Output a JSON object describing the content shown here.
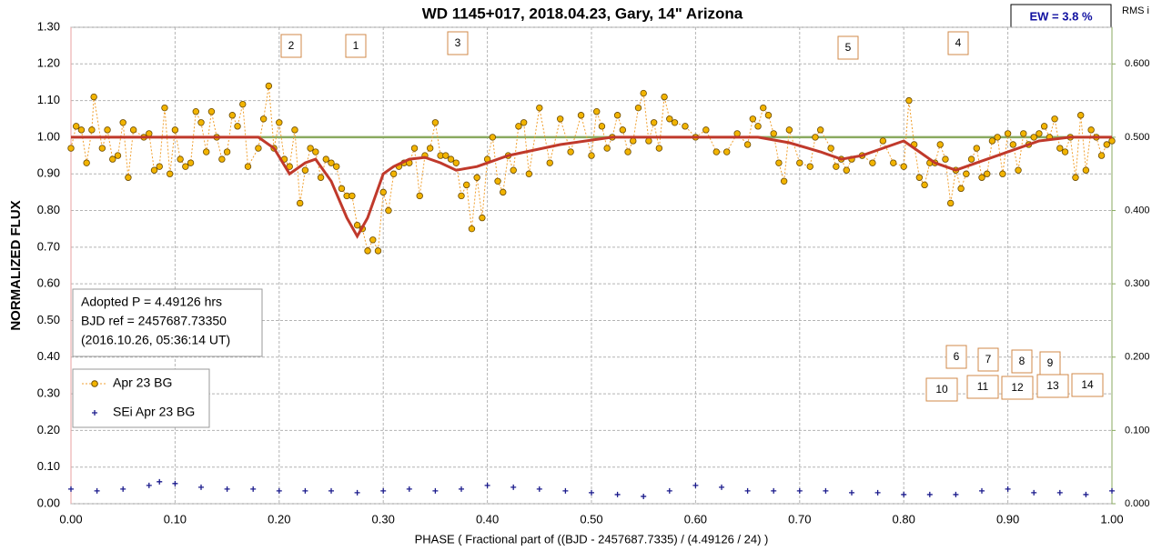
{
  "chart_data": {
    "type": "scatter",
    "title": "WD 1145+017, 2018.04.23, Gary,  14\" Arizona",
    "x_label": "PHASE  ( Fractional part of ((BJD - 2457687.7335)  / (4.49126  / 24) )",
    "y_label": "NORMALIZED  FLUX",
    "y2_label": "RMS i",
    "ew_label": "EW =  3.8 %",
    "info": [
      "Adopted P = 4.49126 hrs",
      "BJD ref = 2457687.73350",
      "(2016.10.26, 05:36:14 UT)"
    ],
    "annotations": [
      "1",
      "2",
      "3",
      "4",
      "5",
      "6",
      "7",
      "8",
      "9",
      "10",
      "11",
      "12",
      "13",
      "14"
    ],
    "xlim": [
      0,
      1
    ],
    "ylim": [
      0,
      1.3
    ],
    "y2lim": [
      0,
      0.65
    ],
    "xticks": [
      {
        "value": 0,
        "label": "0.00"
      },
      {
        "value": 0.1,
        "label": "0.10"
      },
      {
        "value": 0.2,
        "label": "0.20"
      },
      {
        "value": 0.3,
        "label": "0.30"
      },
      {
        "value": 0.4,
        "label": "0.40"
      },
      {
        "value": 0.5,
        "label": "0.50"
      },
      {
        "value": 0.6,
        "label": "0.60"
      },
      {
        "value": 0.7,
        "label": "0.70"
      },
      {
        "value": 0.8,
        "label": "0.80"
      },
      {
        "value": 0.9,
        "label": "0.90"
      },
      {
        "value": 1,
        "label": "1.00"
      }
    ],
    "yticks": [
      {
        "value": 0,
        "label": "0.00"
      },
      {
        "value": 0.1,
        "label": "0.10"
      },
      {
        "value": 0.2,
        "label": "0.20"
      },
      {
        "value": 0.3,
        "label": "0.30"
      },
      {
        "value": 0.4,
        "label": "0.40"
      },
      {
        "value": 0.5,
        "label": "0.50"
      },
      {
        "value": 0.6,
        "label": "0.60"
      },
      {
        "value": 0.7,
        "label": "0.70"
      },
      {
        "value": 0.8,
        "label": "0.80"
      },
      {
        "value": 0.9,
        "label": "0.90"
      },
      {
        "value": 1,
        "label": "1.00"
      },
      {
        "value": 1.1,
        "label": "1.10"
      },
      {
        "value": 1.2,
        "label": "1.20"
      },
      {
        "value": 1.3,
        "label": "1.30"
      }
    ],
    "y2ticks": [
      {
        "value": 0,
        "label": "0.000"
      },
      {
        "value": 0.1,
        "label": "0.100"
      },
      {
        "value": 0.2,
        "label": "0.200"
      },
      {
        "value": 0.3,
        "label": "0.300"
      },
      {
        "value": 0.4,
        "label": "0.400"
      },
      {
        "value": 0.5,
        "label": "0.500"
      },
      {
        "value": 0.6,
        "label": "0.600"
      }
    ],
    "grid": true,
    "series": [
      {
        "name": "Apr 23 BG",
        "color": "#f2b400",
        "style": "points",
        "x": [
          0,
          0.005,
          0.01,
          0.015,
          0.02,
          0.022,
          0.03,
          0.035,
          0.04,
          0.045,
          0.05,
          0.055,
          0.06,
          0.07,
          0.075,
          0.08,
          0.085,
          0.09,
          0.095,
          0.1,
          0.105,
          0.11,
          0.115,
          0.12,
          0.125,
          0.13,
          0.135,
          0.14,
          0.145,
          0.15,
          0.155,
          0.16,
          0.165,
          0.17,
          0.18,
          0.185,
          0.19,
          0.195,
          0.2,
          0.205,
          0.21,
          0.215,
          0.22,
          0.225,
          0.23,
          0.235,
          0.24,
          0.245,
          0.25,
          0.255,
          0.26,
          0.265,
          0.27,
          0.275,
          0.28,
          0.285,
          0.29,
          0.295,
          0.3,
          0.305,
          0.31,
          0.315,
          0.32,
          0.325,
          0.33,
          0.335,
          0.34,
          0.345,
          0.35,
          0.355,
          0.36,
          0.365,
          0.37,
          0.375,
          0.38,
          0.385,
          0.39,
          0.395,
          0.4,
          0.405,
          0.41,
          0.415,
          0.42,
          0.425,
          0.43,
          0.435,
          0.44,
          0.45,
          0.46,
          0.47,
          0.48,
          0.49,
          0.5,
          0.505,
          0.51,
          0.515,
          0.52,
          0.525,
          0.53,
          0.535,
          0.54,
          0.545,
          0.55,
          0.555,
          0.56,
          0.565,
          0.57,
          0.575,
          0.58,
          0.59,
          0.6,
          0.61,
          0.62,
          0.63,
          0.64,
          0.65,
          0.655,
          0.66,
          0.665,
          0.67,
          0.675,
          0.68,
          0.685,
          0.69,
          0.7,
          0.71,
          0.715,
          0.72,
          0.73,
          0.735,
          0.74,
          0.745,
          0.75,
          0.76,
          0.77,
          0.78,
          0.79,
          0.8,
          0.805,
          0.81,
          0.815,
          0.82,
          0.825,
          0.83,
          0.835,
          0.84,
          0.845,
          0.85,
          0.855,
          0.86,
          0.865,
          0.87,
          0.875,
          0.88,
          0.885,
          0.89,
          0.895,
          0.9,
          0.905,
          0.91,
          0.915,
          0.92,
          0.925,
          0.93,
          0.935,
          0.94,
          0.945,
          0.95,
          0.955,
          0.96,
          0.965,
          0.97,
          0.975,
          0.98,
          0.985,
          0.99,
          0.995,
          1
        ],
        "values": [
          0.97,
          1.03,
          1.02,
          0.93,
          1.02,
          1.11,
          0.97,
          1.02,
          0.94,
          0.95,
          1.04,
          0.89,
          1.02,
          1,
          1.01,
          0.91,
          0.92,
          1.08,
          0.9,
          1.02,
          0.94,
          0.92,
          0.93,
          1.07,
          1.04,
          0.96,
          1.07,
          1,
          0.94,
          0.96,
          1.06,
          1.03,
          1.09,
          0.92,
          0.97,
          1.05,
          1.14,
          0.97,
          1.04,
          0.94,
          0.92,
          1.02,
          0.82,
          0.91,
          0.97,
          0.96,
          0.89,
          0.94,
          0.93,
          0.92,
          0.86,
          0.84,
          0.84,
          0.76,
          0.75,
          0.69,
          0.72,
          0.69,
          0.85,
          0.8,
          0.9,
          0.92,
          0.93,
          0.93,
          0.97,
          0.84,
          0.95,
          0.97,
          1.04,
          0.95,
          0.95,
          0.94,
          0.93,
          0.84,
          0.87,
          0.75,
          0.89,
          0.78,
          0.94,
          1,
          0.88,
          0.85,
          0.95,
          0.91,
          1.03,
          1.04,
          0.9,
          1.08,
          0.93,
          1.05,
          0.96,
          1.06,
          0.95,
          1.07,
          1.03,
          0.97,
          1,
          1.06,
          1.02,
          0.96,
          0.99,
          1.08,
          1.12,
          0.99,
          1.04,
          0.97,
          1.11,
          1.05,
          1.04,
          1.03,
          1,
          1.02,
          0.96,
          0.96,
          1.01,
          0.98,
          1.05,
          1.03,
          1.08,
          1.06,
          1.01,
          0.93,
          0.88,
          1.02,
          0.93,
          0.92,
          1,
          1.02,
          0.97,
          0.92,
          0.94,
          0.91,
          0.94,
          0.95,
          0.93,
          0.99,
          0.93,
          0.92,
          1.1,
          0.98,
          0.89,
          0.87,
          0.93,
          0.93,
          0.98,
          0.94,
          0.82,
          0.91,
          0.86,
          0.9,
          0.94,
          0.97,
          0.89,
          0.9,
          0.99,
          1,
          0.9,
          1.01,
          0.98,
          0.91,
          1.01,
          0.98,
          1,
          1.01,
          1.03,
          1,
          1.05,
          0.97,
          0.96,
          1,
          0.89,
          1.06,
          0.91,
          1.02,
          1,
          0.95,
          0.98,
          0.99
        ]
      },
      {
        "name": "SEi Apr 23 BG",
        "color": "#1a1a8c",
        "style": "plus",
        "x": [
          0,
          0.025,
          0.05,
          0.075,
          0.085,
          0.1,
          0.125,
          0.15,
          0.175,
          0.2,
          0.225,
          0.25,
          0.275,
          0.3,
          0.325,
          0.35,
          0.375,
          0.4,
          0.425,
          0.45,
          0.475,
          0.5,
          0.525,
          0.55,
          0.575,
          0.6,
          0.625,
          0.65,
          0.675,
          0.7,
          0.725,
          0.75,
          0.775,
          0.8,
          0.825,
          0.85,
          0.875,
          0.9,
          0.925,
          0.95,
          0.975,
          1
        ],
        "values": [
          0.04,
          0.035,
          0.04,
          0.05,
          0.06,
          0.055,
          0.045,
          0.04,
          0.04,
          0.035,
          0.035,
          0.035,
          0.03,
          0.035,
          0.04,
          0.035,
          0.04,
          0.05,
          0.045,
          0.04,
          0.035,
          0.03,
          0.025,
          0.02,
          0.035,
          0.05,
          0.045,
          0.035,
          0.035,
          0.035,
          0.035,
          0.03,
          0.03,
          0.025,
          0.025,
          0.025,
          0.035,
          0.04,
          0.03,
          0.03,
          0.025,
          0.035
        ]
      },
      {
        "color": "#c0392b",
        "style": "model",
        "x": [
          0,
          0.18,
          0.195,
          0.21,
          0.225,
          0.235,
          0.25,
          0.265,
          0.275,
          0.285,
          0.3,
          0.31,
          0.325,
          0.34,
          0.355,
          0.37,
          0.39,
          0.42,
          0.47,
          0.52,
          0.66,
          0.69,
          0.72,
          0.74,
          0.76,
          0.78,
          0.8,
          0.815,
          0.83,
          0.85,
          0.87,
          0.89,
          0.93,
          0.96,
          1
        ],
        "values": [
          1,
          1,
          0.97,
          0.9,
          0.93,
          0.94,
          0.88,
          0.78,
          0.73,
          0.78,
          0.9,
          0.92,
          0.94,
          0.945,
          0.93,
          0.91,
          0.92,
          0.95,
          0.98,
          1,
          1,
          0.985,
          0.96,
          0.94,
          0.95,
          0.97,
          0.99,
          0.96,
          0.93,
          0.91,
          0.93,
          0.95,
          0.99,
          1,
          1
        ]
      },
      {
        "color": "#8aaa60",
        "style": "baseline",
        "x": [
          0,
          1
        ],
        "values": [
          1,
          1
        ]
      }
    ]
  }
}
